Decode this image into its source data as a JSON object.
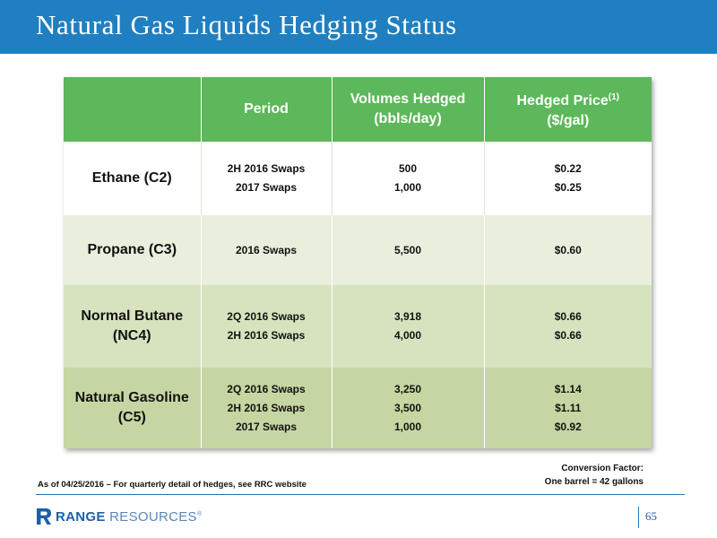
{
  "header": {
    "title": "Natural Gas Liquids Hedging Status"
  },
  "table": {
    "headers": {
      "product": "",
      "period": "Period",
      "volumes_line1": "Volumes Hedged",
      "volumes_line2": "(bbls/day)",
      "price_line1": "Hedged Price",
      "price_sup": "(1)",
      "price_line2": "($/gal)"
    },
    "rows": [
      {
        "product_lines": [
          "Ethane (C2)"
        ],
        "periods": [
          "2H 2016 Swaps",
          "2017 Swaps"
        ],
        "volumes": [
          "500",
          "1,000"
        ],
        "prices": [
          "$0.22",
          "$0.25"
        ]
      },
      {
        "product_lines": [
          "Propane (C3)"
        ],
        "periods": [
          "2016 Swaps"
        ],
        "volumes": [
          "5,500"
        ],
        "prices": [
          "$0.60"
        ]
      },
      {
        "product_lines": [
          "Normal Butane",
          "(NC4)"
        ],
        "periods": [
          "2Q 2016 Swaps",
          "2H 2016 Swaps"
        ],
        "volumes": [
          "3,918",
          "4,000"
        ],
        "prices": [
          "$0.66",
          "$0.66"
        ]
      },
      {
        "product_lines": [
          "Natural Gasoline",
          "(C5)"
        ],
        "periods": [
          "2Q 2016 Swaps",
          "2H 2016 Swaps",
          "2017 Swaps"
        ],
        "volumes": [
          "3,250",
          "3,500",
          "1,000"
        ],
        "prices": [
          "$1.14",
          "$1.11",
          "$0.92"
        ]
      }
    ]
  },
  "footnote": "As of 04/25/2016 – For quarterly detail of hedges, see RRC website",
  "conversion": {
    "line1": "Conversion Factor:",
    "line2": "One barrel = 42 gallons"
  },
  "footer": {
    "logo_bold": "RANGE",
    "logo_light": "RESOURCES",
    "logo_mark": "®",
    "page_number": "65"
  },
  "colors": {
    "title_bar": "#1f7fc1",
    "header_green": "#5cb85a",
    "row_white": "#ffffff",
    "row_light": "#e9eedd",
    "row_mid": "#d7e3be",
    "row_dark": "#c5d6a3"
  }
}
